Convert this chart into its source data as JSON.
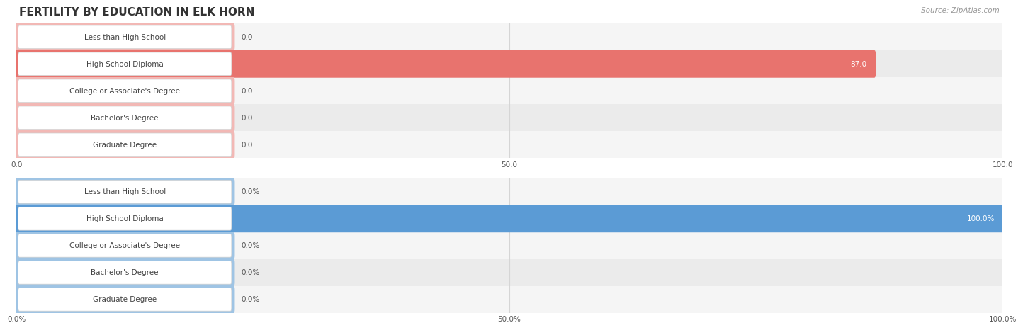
{
  "title": "FERTILITY BY EDUCATION IN ELK HORN",
  "source_text": "Source: ZipAtlas.com",
  "top_chart": {
    "categories": [
      "Less than High School",
      "High School Diploma",
      "College or Associate's Degree",
      "Bachelor's Degree",
      "Graduate Degree"
    ],
    "values": [
      0.0,
      87.0,
      0.0,
      0.0,
      0.0
    ],
    "xlim": [
      0,
      100
    ],
    "xticks": [
      0.0,
      50.0,
      100.0
    ],
    "xtick_labels": [
      "0.0",
      "50.0",
      "100.0"
    ],
    "bar_color_highlight": "#e8736e",
    "bar_color_zero": "#f2b8b5",
    "row_bg_colors": [
      "#f5f5f5",
      "#ebebeb"
    ],
    "value_label_inside_color": "#ffffff",
    "value_label_outside_color": "#555555",
    "label_pill_bg": "#ffffff",
    "label_pill_border": "#d0d0d0",
    "label_text_color": "#444444",
    "grid_color": "#d5d5d5"
  },
  "bottom_chart": {
    "categories": [
      "Less than High School",
      "High School Diploma",
      "College or Associate's Degree",
      "Bachelor's Degree",
      "Graduate Degree"
    ],
    "values": [
      0.0,
      100.0,
      0.0,
      0.0,
      0.0
    ],
    "xlim": [
      0,
      100
    ],
    "xticks": [
      0.0,
      50.0,
      100.0
    ],
    "xtick_labels": [
      "0.0%",
      "50.0%",
      "100.0%"
    ],
    "bar_color_highlight": "#5b9bd5",
    "bar_color_zero": "#9fc4e4",
    "row_bg_colors": [
      "#f5f5f5",
      "#ebebeb"
    ],
    "value_label_inside_color": "#ffffff",
    "value_label_outside_color": "#555555",
    "label_pill_bg": "#ffffff",
    "label_pill_border": "#d0d0d0",
    "label_text_color": "#444444",
    "grid_color": "#d5d5d5"
  },
  "background_color": "#ffffff",
  "title_color": "#333333",
  "source_color": "#999999",
  "title_fontsize": 11,
  "label_fontsize": 7.5,
  "value_fontsize": 7.5,
  "tick_fontsize": 7.5
}
